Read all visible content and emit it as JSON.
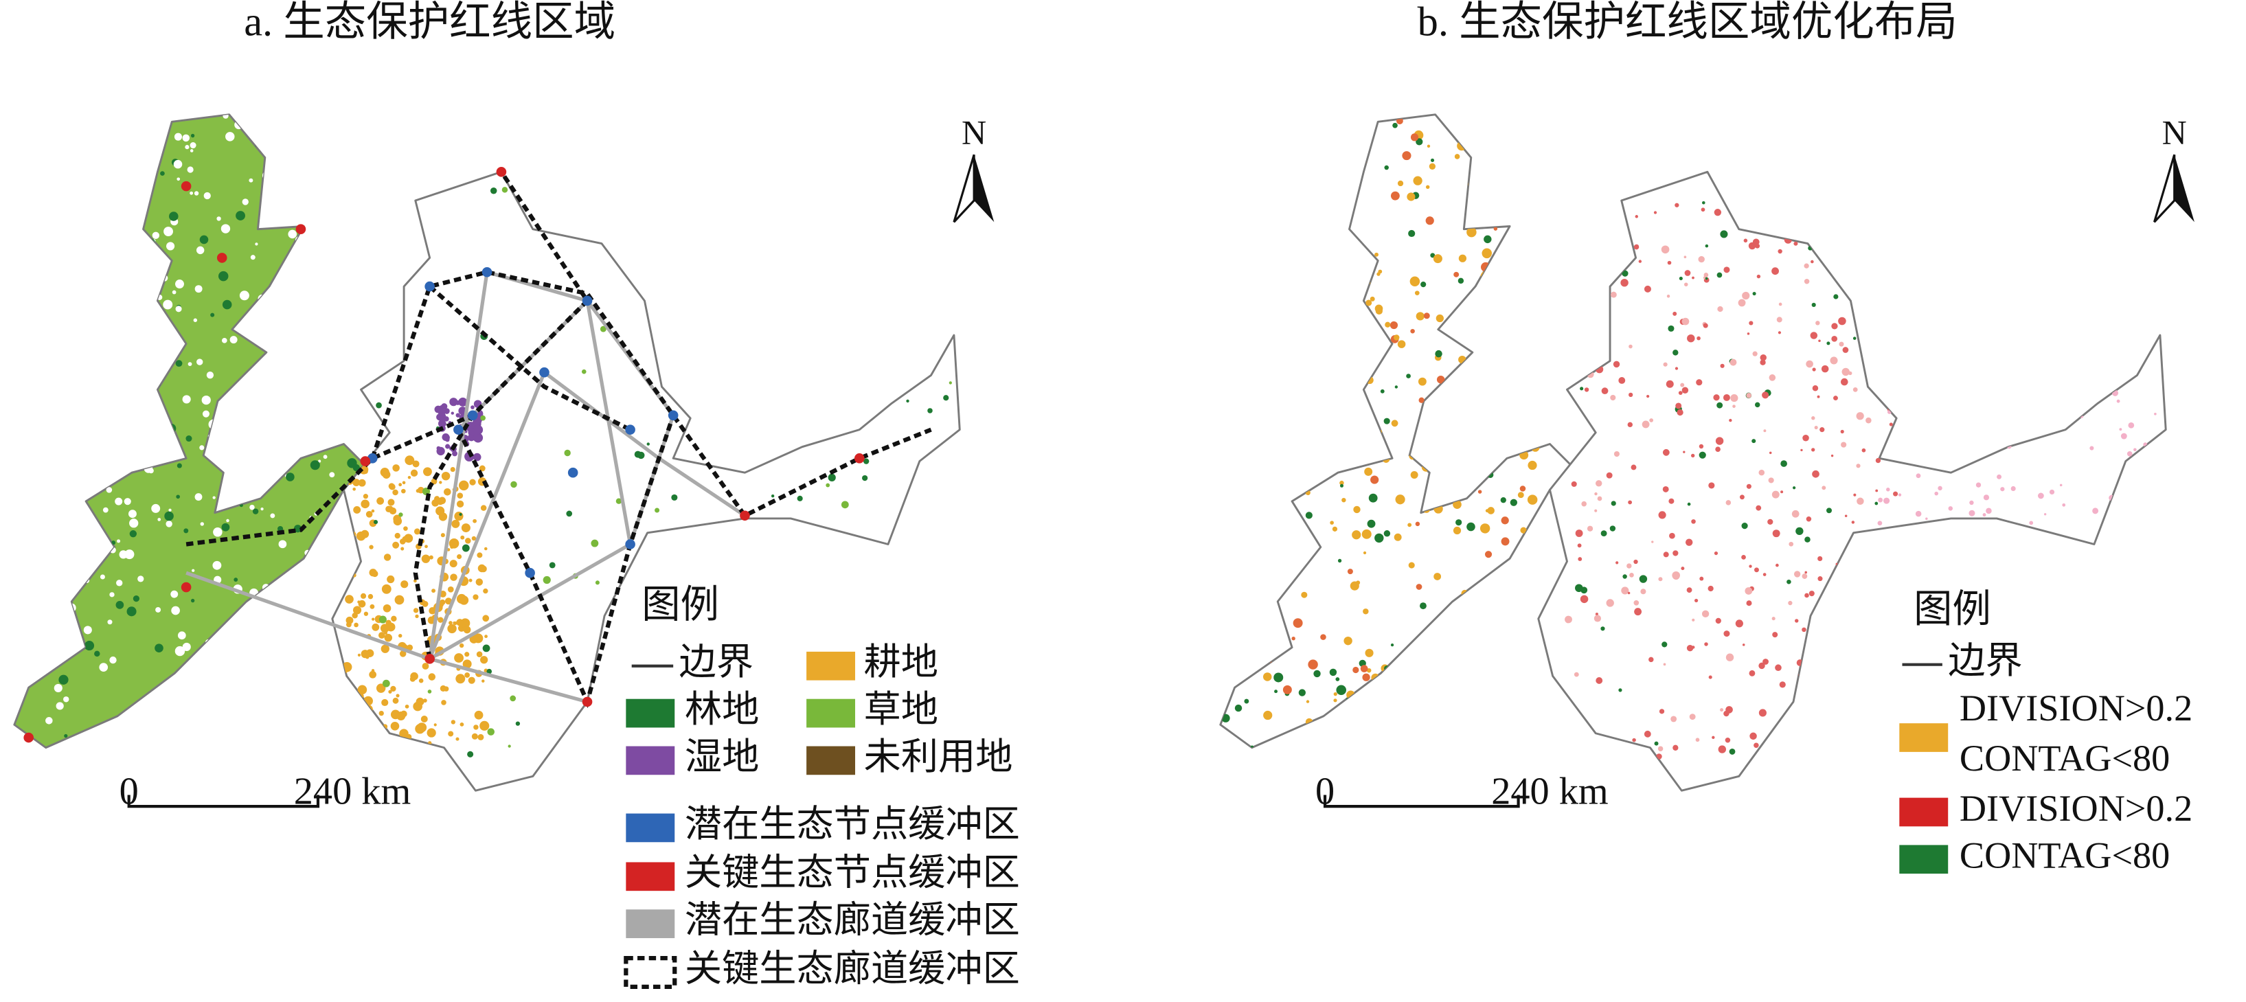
{
  "panel_a": {
    "title": "a. 生态保护红线区域",
    "north": "N",
    "scale_bar": {
      "start": "0",
      "end": "240 km"
    },
    "legend": {
      "title": "图例",
      "items": [
        "边界",
        "耕地",
        "林地",
        "草地",
        "湿地",
        "未利用地",
        "潜在生态节点缓冲区",
        "关键生态节点缓冲区",
        "潜在生态廊道缓冲区",
        "关键生态廊道缓冲区"
      ]
    }
  },
  "panel_b": {
    "title": "b. 生态保护红线区域优化布局",
    "north": "N",
    "scale_bar": {
      "start": "0",
      "end": "240 km"
    },
    "legend": {
      "title": "图例",
      "items": [
        "边界",
        [
          "DIVISION>0.2",
          "CONTAG<80"
        ],
        "DIVISION>0.2",
        "CONTAG<80"
      ]
    }
  }
}
